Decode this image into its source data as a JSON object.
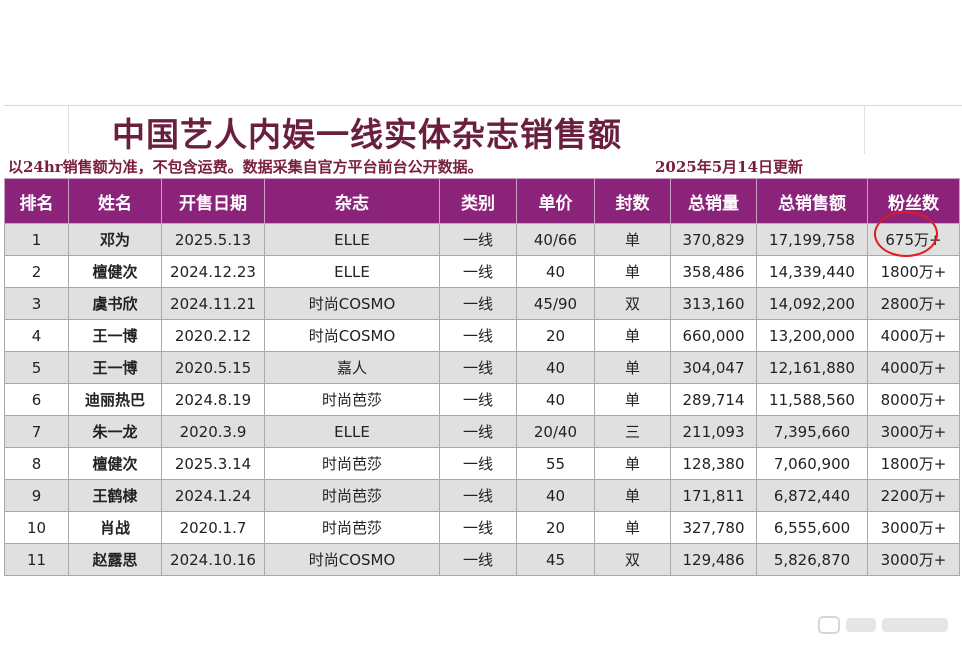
{
  "title": "中国艺人内娱一线实体杂志销售额",
  "subtitle": "以24hr销售额为准，不包含运费。数据采集自官方平台前台公开数据。",
  "updated": "2025年5月14日更新",
  "columns": [
    "排名",
    "姓名",
    "开售日期",
    "杂志",
    "类别",
    "单价",
    "封数",
    "总销量",
    "总销售额",
    "粉丝数"
  ],
  "rows": [
    {
      "rank": "1",
      "name": "邓为",
      "date": "2025.5.13",
      "magazine": "ELLE",
      "category": "一线",
      "price": "40/66",
      "covers": "单",
      "units": "370,829",
      "revenue": "17,199,758",
      "fans": "675万+"
    },
    {
      "rank": "2",
      "name": "檀健次",
      "date": "2024.12.23",
      "magazine": "ELLE",
      "category": "一线",
      "price": "40",
      "covers": "单",
      "units": "358,486",
      "revenue": "14,339,440",
      "fans": "1800万+"
    },
    {
      "rank": "3",
      "name": "虞书欣",
      "date": "2024.11.21",
      "magazine": "时尚COSMO",
      "category": "一线",
      "price": "45/90",
      "covers": "双",
      "units": "313,160",
      "revenue": "14,092,200",
      "fans": "2800万+"
    },
    {
      "rank": "4",
      "name": "王一博",
      "date": "2020.2.12",
      "magazine": "时尚COSMO",
      "category": "一线",
      "price": "20",
      "covers": "单",
      "units": "660,000",
      "revenue": "13,200,000",
      "fans": "4000万+"
    },
    {
      "rank": "5",
      "name": "王一博",
      "date": "2020.5.15",
      "magazine": "嘉人",
      "category": "一线",
      "price": "40",
      "covers": "单",
      "units": "304,047",
      "revenue": "12,161,880",
      "fans": "4000万+"
    },
    {
      "rank": "6",
      "name": "迪丽热巴",
      "date": "2024.8.19",
      "magazine": "时尚芭莎",
      "category": "一线",
      "price": "40",
      "covers": "单",
      "units": "289,714",
      "revenue": "11,588,560",
      "fans": "8000万+"
    },
    {
      "rank": "7",
      "name": "朱一龙",
      "date": "2020.3.9",
      "magazine": "ELLE",
      "category": "一线",
      "price": "20/40",
      "covers": "三",
      "units": "211,093",
      "revenue": "7,395,660",
      "fans": "3000万+"
    },
    {
      "rank": "8",
      "name": "檀健次",
      "date": "2025.3.14",
      "magazine": "时尚芭莎",
      "category": "一线",
      "price": "55",
      "covers": "单",
      "units": "128,380",
      "revenue": "7,060,900",
      "fans": "1800万+"
    },
    {
      "rank": "9",
      "name": "王鹤棣",
      "date": "2024.1.24",
      "magazine": "时尚芭莎",
      "category": "一线",
      "price": "40",
      "covers": "单",
      "units": "171,811",
      "revenue": "6,872,440",
      "fans": "2200万+"
    },
    {
      "rank": "10",
      "name": "肖战",
      "date": "2020.1.7",
      "magazine": "时尚芭莎",
      "category": "一线",
      "price": "20",
      "covers": "单",
      "units": "327,780",
      "revenue": "6,555,600",
      "fans": "3000万+"
    },
    {
      "rank": "11",
      "name": "赵露思",
      "date": "2024.10.16",
      "magazine": "时尚COSMO",
      "category": "一线",
      "price": "45",
      "covers": "双",
      "units": "129,486",
      "revenue": "5,826,870",
      "fans": "3000万+"
    }
  ],
  "colors": {
    "header_bg": "#8b237a",
    "title": "#6b1f3f",
    "highlight_circle": "#e01b1b",
    "alt_row": "#e0e0e0"
  }
}
